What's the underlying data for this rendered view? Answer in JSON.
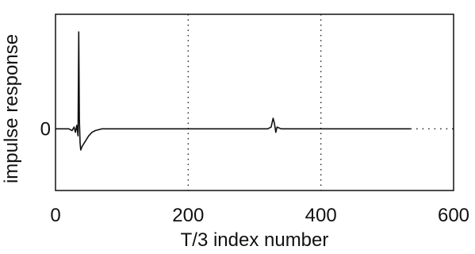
{
  "chart_data": {
    "type": "line",
    "title": "",
    "xlabel": "T/3 index number",
    "ylabel": "impulse response",
    "xlim": [
      0,
      600
    ],
    "x_ticks": [
      0,
      200,
      400,
      600
    ],
    "x_tick_labels": [
      "0",
      "200",
      "400",
      "600"
    ],
    "y_tick_labels": [
      "0"
    ],
    "ylim": [
      -0.35,
      0.65
    ],
    "grid": "vertical dotted lines at x = 200 and 400",
    "series": [
      {
        "points": [
          [
            0,
            0
          ],
          [
            20,
            0
          ],
          [
            25,
            -0.01
          ],
          [
            28,
            0.01
          ],
          [
            30,
            -0.02
          ],
          [
            32,
            0.02
          ],
          [
            34,
            -0.04
          ],
          [
            35,
            0.55
          ],
          [
            36,
            0.05
          ],
          [
            37,
            -0.08
          ],
          [
            38,
            -0.12
          ],
          [
            40,
            -0.1
          ],
          [
            45,
            -0.07
          ],
          [
            50,
            -0.04
          ],
          [
            55,
            -0.02
          ],
          [
            60,
            -0.01
          ],
          [
            70,
            0
          ],
          [
            320,
            0
          ],
          [
            325,
            0.01
          ],
          [
            328,
            0.06
          ],
          [
            330,
            0.03
          ],
          [
            332,
            -0.02
          ],
          [
            334,
            0.01
          ],
          [
            340,
            0
          ],
          [
            535,
            0
          ]
        ]
      }
    ],
    "tail": {
      "x_from": 535,
      "x_to": 600,
      "value": 0,
      "style": "dotted"
    }
  }
}
